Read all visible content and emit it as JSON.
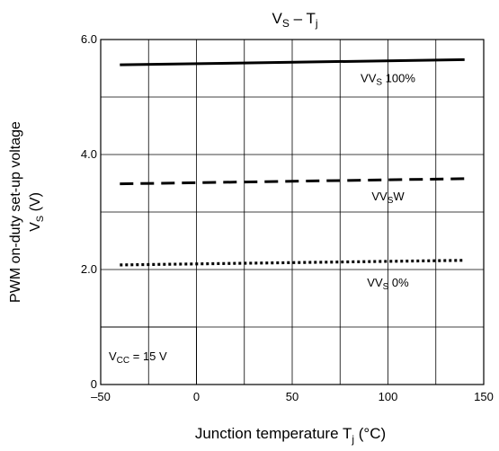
{
  "chart_data": {
    "type": "line",
    "title": {
      "main": "V",
      "sub": "S",
      "suffix": " – T",
      "suffix_sub": "j"
    },
    "xlabel": {
      "main": "Junction temperature   T",
      "sub": "j",
      "unit": "   (°C)"
    },
    "ylabel": {
      "line1": "PWM on-duty set-up voltage",
      "line2_main": "V",
      "line2_sub": "S",
      "line2_unit": "   (V)"
    },
    "xlim": [
      -50,
      150
    ],
    "ylim": [
      0,
      6.0
    ],
    "x_ticks": [
      -50,
      0,
      50,
      100,
      150
    ],
    "x_tick_labels": [
      "–50",
      "0",
      "50",
      "100",
      "150"
    ],
    "x_minor_grid": [
      -25,
      25,
      75,
      125
    ],
    "y_ticks": [
      0,
      2.0,
      4.0,
      6.0
    ],
    "y_tick_labels": [
      "0",
      "2.0",
      "4.0",
      "6.0"
    ],
    "y_minor_grid": [
      1.0,
      3.0,
      5.0
    ],
    "grid": true,
    "series": [
      {
        "name": "VVS 100%",
        "label_main": "VV",
        "label_sub": "S",
        "label_suffix": " 100%",
        "style": "solid",
        "x": [
          -40,
          140
        ],
        "y": [
          5.56,
          5.65
        ],
        "label_at": [
          100,
          5.26
        ]
      },
      {
        "name": "VVSW",
        "label_main": "VV",
        "label_sub": "S",
        "label_suffix": "W",
        "style": "dashed",
        "x": [
          -40,
          140
        ],
        "y": [
          3.49,
          3.58
        ],
        "label_at": [
          100,
          3.2
        ]
      },
      {
        "name": "VVS 0%",
        "label_main": "VV",
        "label_sub": "S",
        "label_suffix": " 0%",
        "style": "dotted",
        "x": [
          -40,
          140
        ],
        "y": [
          2.08,
          2.16
        ],
        "label_at": [
          100,
          1.7
        ]
      }
    ],
    "annotation": {
      "main": "V",
      "sub": "CC",
      "suffix": " = 15 V",
      "box_x": [
        -50,
        0
      ],
      "box_y": [
        0,
        1.0
      ]
    }
  }
}
